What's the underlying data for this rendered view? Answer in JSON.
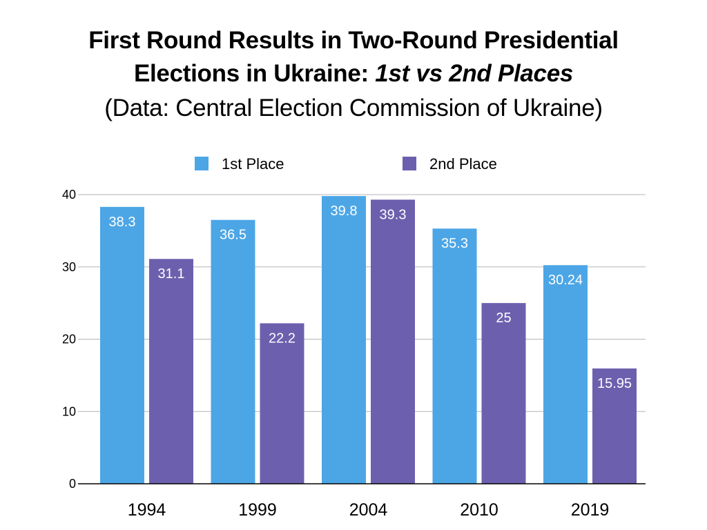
{
  "title": {
    "line1": "First Round Results in Two-Round Presidential",
    "line2_plain": "Elections in Ukraine: ",
    "line2_italic": "1st vs 2nd Places",
    "line3": "(Data: Central Election Commission of Ukraine)"
  },
  "colors": {
    "first": "#4ca6e6",
    "second": "#6c60ae",
    "grid": "#b5b5b5",
    "axis": "#000000"
  },
  "chart_data": {
    "type": "bar",
    "title": "First Round Results in Two-Round Presidential Elections in Ukraine: 1st vs 2nd Places",
    "subtitle": "(Data: Central Election Commission of Ukraine)",
    "xlabel": "",
    "ylabel": "",
    "categories": [
      "1994",
      "1999",
      "2004",
      "2010",
      "2019"
    ],
    "series": [
      {
        "name": "1st Place",
        "values": [
          38.3,
          36.5,
          39.8,
          35.3,
          30.24
        ],
        "labels": [
          "38.3",
          "36.5",
          "39.8",
          "35.3",
          "30.24"
        ]
      },
      {
        "name": "2nd Place",
        "values": [
          31.1,
          22.2,
          39.3,
          25,
          15.95
        ],
        "labels": [
          "31.1",
          "22.2",
          "39.3",
          "25",
          "15.95"
        ]
      }
    ],
    "ylim": [
      0,
      40
    ],
    "yticks": [
      "0",
      "10",
      "20",
      "30",
      "40"
    ],
    "grid": true,
    "legend": "top-center"
  }
}
